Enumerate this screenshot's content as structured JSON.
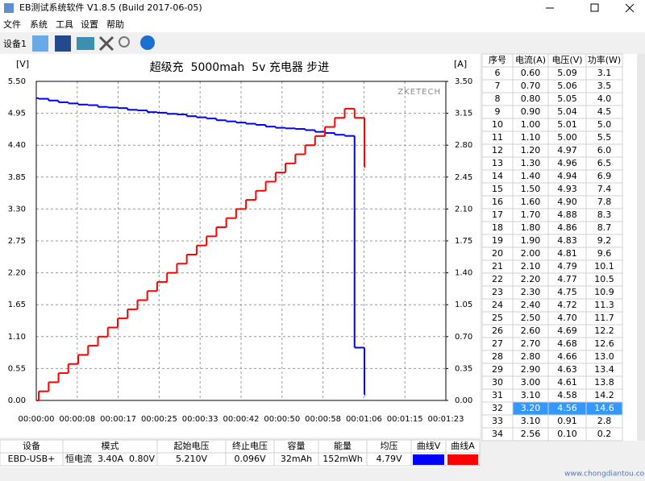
{
  "window": {
    "title": "EB测试系统软件 V1.8.5 (Build 2017-06-05)"
  },
  "menu": [
    "文件",
    "系统",
    "工具",
    "设置",
    "帮助"
  ],
  "toolbar": {
    "device": "设备1"
  },
  "chart_data": {
    "type": "line",
    "step": true,
    "title": "超级充  5000mah  5v 充电器 步进",
    "watermark": "ZKETECH",
    "ylabel": "[V]",
    "y2label": "[A]",
    "x": [
      0,
      0.5,
      2.5,
      4.5,
      6.5,
      8.5,
      10.5,
      12.5,
      14.5,
      16.5,
      18.5,
      20.5,
      22.5,
      24.5,
      26.5,
      28.5,
      30.5,
      32.5,
      34.5,
      36.5,
      38.5,
      40.5,
      42.5,
      44.5,
      46.5,
      48.5,
      50.5,
      52.5,
      54.5,
      56.5,
      58.5,
      60.5,
      62.5,
      64.5,
      66.5
    ],
    "xlim": [
      0,
      83
    ],
    "xticks": [
      {
        "value": 0,
        "label": "00:00:00"
      },
      {
        "value": 8.3,
        "label": "00:00:08"
      },
      {
        "value": 16.6,
        "label": "00:00:17"
      },
      {
        "value": 24.9,
        "label": "00:00:25"
      },
      {
        "value": 33.2,
        "label": "00:00:33"
      },
      {
        "value": 41.5,
        "label": "00:00:42"
      },
      {
        "value": 49.8,
        "label": "00:00:50"
      },
      {
        "value": 58.1,
        "label": "00:00:58"
      },
      {
        "value": 66.4,
        "label": "00:01:06"
      },
      {
        "value": 74.7,
        "label": "00:01:15"
      },
      {
        "value": 83,
        "label": "00:01:23"
      }
    ],
    "ylim": [
      0,
      5.5
    ],
    "yticks": [
      {
        "value": 0,
        "label": "0.00"
      },
      0.55,
      {
        "value": 1.1,
        "label": "1.10"
      },
      1.65,
      {
        "value": 2.2,
        "label": "2.20"
      },
      2.75,
      {
        "value": 3.3,
        "label": "3.30"
      },
      3.85,
      {
        "value": 4.4,
        "label": "4.40"
      },
      4.95,
      {
        "value": 5.5,
        "label": "5.50"
      }
    ],
    "y2lim": [
      0,
      3.5
    ],
    "y2ticks": [
      {
        "value": 0,
        "label": "0.00"
      },
      0.35,
      {
        "value": 0.7,
        "label": "0.70"
      },
      1.05,
      {
        "value": 1.4,
        "label": "1.40"
      },
      1.75,
      {
        "value": 2.1,
        "label": "2.10"
      },
      2.45,
      {
        "value": 2.8,
        "label": "2.80"
      },
      3.15,
      {
        "value": 3.5,
        "label": "3.50"
      }
    ],
    "grid": true,
    "series": [
      {
        "name": "曲线V",
        "color": "#0000ff",
        "values": [
          5.21,
          5.2,
          5.17,
          5.14,
          5.12,
          5.1,
          5.09,
          5.06,
          5.05,
          5.04,
          5.01,
          5.0,
          4.97,
          4.96,
          4.94,
          4.93,
          4.9,
          4.88,
          4.86,
          4.83,
          4.81,
          4.79,
          4.77,
          4.75,
          4.72,
          4.7,
          4.69,
          4.68,
          4.66,
          4.63,
          4.61,
          4.58,
          4.56,
          0.91,
          0.1
        ]
      },
      {
        "name": "曲线A",
        "color": "#ff0000",
        "axis": "y2",
        "values": [
          0,
          0.1,
          0.2,
          0.3,
          0.4,
          0.5,
          0.6,
          0.7,
          0.8,
          0.9,
          1.0,
          1.1,
          1.2,
          1.3,
          1.4,
          1.5,
          1.6,
          1.7,
          1.8,
          1.9,
          2.0,
          2.1,
          2.2,
          2.3,
          2.4,
          2.5,
          2.6,
          2.7,
          2.8,
          2.9,
          3.0,
          3.1,
          3.2,
          3.1,
          2.56
        ]
      }
    ]
  },
  "table": {
    "headers": [
      "序号",
      "电流(A)",
      "电压(V)",
      "功率(W)"
    ],
    "selected_row": 26,
    "rows": [
      [
        "6",
        "0.60",
        "5.09",
        "3.1"
      ],
      [
        "7",
        "0.70",
        "5.06",
        "3.5"
      ],
      [
        "8",
        "0.80",
        "5.05",
        "4.0"
      ],
      [
        "9",
        "0.90",
        "5.04",
        "4.5"
      ],
      [
        "10",
        "1.00",
        "5.01",
        "5.0"
      ],
      [
        "11",
        "1.10",
        "5.00",
        "5.5"
      ],
      [
        "12",
        "1.20",
        "4.97",
        "6.0"
      ],
      [
        "13",
        "1.30",
        "4.96",
        "6.5"
      ],
      [
        "14",
        "1.40",
        "4.94",
        "6.9"
      ],
      [
        "15",
        "1.50",
        "4.93",
        "7.4"
      ],
      [
        "16",
        "1.60",
        "4.90",
        "7.8"
      ],
      [
        "17",
        "1.70",
        "4.88",
        "8.3"
      ],
      [
        "18",
        "1.80",
        "4.86",
        "8.7"
      ],
      [
        "19",
        "1.90",
        "4.83",
        "9.2"
      ],
      [
        "20",
        "2.00",
        "4.81",
        "9.6"
      ],
      [
        "21",
        "2.10",
        "4.79",
        "10.1"
      ],
      [
        "22",
        "2.20",
        "4.77",
        "10.5"
      ],
      [
        "23",
        "2.30",
        "4.75",
        "10.9"
      ],
      [
        "24",
        "2.40",
        "4.72",
        "11.3"
      ],
      [
        "25",
        "2.50",
        "4.70",
        "11.7"
      ],
      [
        "26",
        "2.60",
        "4.69",
        "12.2"
      ],
      [
        "27",
        "2.70",
        "4.68",
        "12.6"
      ],
      [
        "28",
        "2.80",
        "4.66",
        "13.0"
      ],
      [
        "29",
        "2.90",
        "4.63",
        "13.4"
      ],
      [
        "30",
        "3.00",
        "4.61",
        "13.8"
      ],
      [
        "31",
        "3.10",
        "4.58",
        "14.2"
      ],
      [
        "32",
        "3.20",
        "4.56",
        "14.6"
      ],
      [
        "33",
        "3.10",
        "0.91",
        "2.8"
      ],
      [
        "34",
        "2.56",
        "0.10",
        "0.2"
      ]
    ]
  },
  "summary": {
    "headers": [
      "设备",
      "模式",
      "起始电压",
      "终止电压",
      "容量",
      "能量",
      "均压"
    ],
    "values": [
      "EBD-USB+",
      "恒电流  3.40A  0.80V",
      "5.210V",
      "0.096V",
      "32mAh",
      "152mWh",
      "4.79V"
    ]
  },
  "site": "www.chongdiantou.com"
}
